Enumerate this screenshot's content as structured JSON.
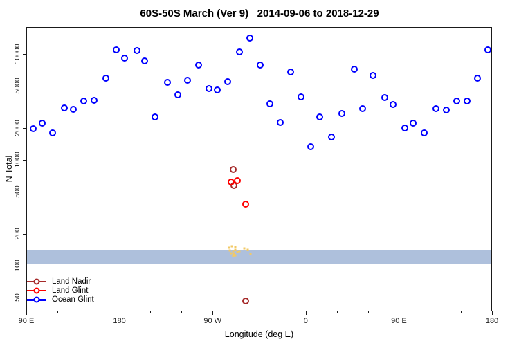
{
  "chart_data": {
    "type": "scatter",
    "title": "60S-50S March (Ver 9)   2014-09-06 to 2018-12-29",
    "xlabel": "Longitude (deg E)",
    "ylabel": "N Total",
    "x_axis": {
      "range": [
        90,
        540
      ],
      "unit": "deg E (wrapping eastward from 90E through 180, 90W, 0, 90E to 180)",
      "major_ticks": [
        {
          "lon": 90,
          "label": "90 E"
        },
        {
          "lon": 180,
          "label": "180"
        },
        {
          "lon": 270,
          "label": "90 W"
        },
        {
          "lon": 360,
          "label": "0"
        },
        {
          "lon": 450,
          "label": "90 E"
        },
        {
          "lon": 540,
          "label": "180"
        }
      ],
      "minor_tick_step": 30
    },
    "y_axis": {
      "scale": "log10",
      "range": [
        37,
        18000
      ],
      "ticks": [
        50,
        100,
        200,
        500,
        1000,
        2000,
        5000,
        10000
      ],
      "tick_labels": [
        "50",
        "100",
        "200",
        "500",
        "1000",
        "2000",
        "5000",
        "10000"
      ],
      "grid": false
    },
    "reference_band": {
      "n_from": 104,
      "n_to": 143,
      "color": "#aec0dc"
    },
    "separator_line": {
      "n": 256,
      "color": "#4d4d4d"
    },
    "legend": {
      "position": "bottom-left",
      "entries": [
        "Land Nadir",
        "Land Glint",
        "Ocean Glint"
      ]
    },
    "series": [
      {
        "name": "Land Nadir",
        "color": "#A52A2A",
        "marker": "open-circle",
        "in_legend": true,
        "points": [
          [
            289,
            820
          ],
          [
            290,
            580
          ],
          [
            301,
            47
          ]
        ]
      },
      {
        "name": "Land Glint",
        "color": "#FF0000",
        "marker": "open-circle",
        "in_legend": true,
        "points": [
          [
            287,
            630
          ],
          [
            293,
            650
          ],
          [
            301,
            390
          ]
        ]
      },
      {
        "name": "Ocean Glint",
        "color": "#0000FF",
        "marker": "open-circle",
        "in_legend": true,
        "points": [
          [
            96,
            2000
          ],
          [
            105,
            2250
          ],
          [
            115,
            1820
          ],
          [
            126,
            3140
          ],
          [
            135,
            3050
          ],
          [
            145,
            3650
          ],
          [
            155,
            3700
          ],
          [
            166,
            6000
          ],
          [
            176,
            11100
          ],
          [
            184,
            9300
          ],
          [
            196,
            10900
          ],
          [
            204,
            8700
          ],
          [
            214,
            2600
          ],
          [
            226,
            5500
          ],
          [
            236,
            4200
          ],
          [
            245,
            5700
          ],
          [
            256,
            8000
          ],
          [
            266,
            4800
          ],
          [
            274,
            4650
          ],
          [
            284,
            5600
          ],
          [
            295,
            10700
          ],
          [
            305,
            14400
          ],
          [
            315,
            8000
          ],
          [
            325,
            3450
          ],
          [
            335,
            2290
          ],
          [
            345,
            6900
          ],
          [
            355,
            4000
          ],
          [
            364,
            1350
          ],
          [
            373,
            2600
          ],
          [
            384,
            1670
          ],
          [
            394,
            2800
          ],
          [
            406,
            7300
          ],
          [
            414,
            3100
          ],
          [
            424,
            6350
          ],
          [
            436,
            3930
          ],
          [
            444,
            3400
          ],
          [
            455,
            2030
          ],
          [
            463,
            2250
          ],
          [
            474,
            1820
          ],
          [
            485,
            3100
          ],
          [
            495,
            3000
          ],
          [
            505,
            3630
          ],
          [
            515,
            3650
          ],
          [
            525,
            6000
          ],
          [
            535,
            11100
          ]
        ]
      },
      {
        "name": "unlabeled yellow marks",
        "color": "#f2c966",
        "marker": "small-square",
        "in_legend": false,
        "points": [
          [
            285,
            150
          ],
          [
            288,
            155
          ],
          [
            291,
            152
          ],
          [
            286,
            141
          ],
          [
            289,
            139
          ],
          [
            291,
            144
          ],
          [
            287,
            133
          ],
          [
            290,
            131
          ],
          [
            293,
            137
          ],
          [
            289,
            125
          ],
          [
            291,
            127
          ],
          [
            295,
            139
          ],
          [
            300,
            148
          ],
          [
            303,
            143
          ],
          [
            306,
            131
          ]
        ]
      }
    ]
  }
}
